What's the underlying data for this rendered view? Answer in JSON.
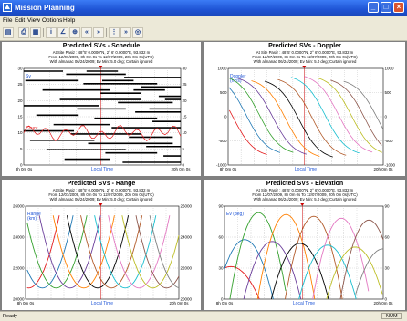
{
  "window": {
    "title": "Mission Planning"
  },
  "menu": [
    "File",
    "Edit",
    "View",
    "Options",
    "Help"
  ],
  "toolbar": {
    "icons": [
      "open-icon",
      "print-icon",
      "print-preview-icon",
      "info-icon",
      "line-chart-icon",
      "crosshair-icon",
      "step-back-icon",
      "step-forward-icon",
      "sky-plot-icon",
      "skip-icon",
      "settings-icon"
    ]
  },
  "common": {
    "subtitle1": "At Site Pasiz : 48°5' 0.0000\"N, 2° 6' 0.0000\"E, 93.832 m",
    "subtitle2": "From 12/07/2009, 8h 0m 0s To 12/07/2009, 20h 0m 0s(UTC)",
    "subtitle3": "With almanac 06/24/2009; Ev Min: 5.0 deg; Curtain ignored",
    "x_left": "8h 0m 0s",
    "x_right": "20h 0m 0s",
    "x_label": "Local Time"
  },
  "panels": {
    "schedule": {
      "title": "Predicted SVs - Schedule",
      "y_label": "Sv",
      "count_label": "Count",
      "ticks_left": [
        "30",
        "25",
        "20",
        "15",
        "10",
        "5",
        "0"
      ],
      "ticks_right": [
        "30",
        "25",
        "20",
        "15",
        "10",
        "5",
        "0"
      ]
    },
    "doppler": {
      "title": "Predicted SVs - Doppler",
      "y_label": "Doppler\n(hz/s)",
      "ticks_left": [
        "1000",
        "500",
        "0",
        "-500",
        "-1000"
      ],
      "ticks_right": [
        "1000",
        "500",
        "0",
        "-500",
        "-1000"
      ]
    },
    "range": {
      "title": "Predicted SVs - Range",
      "y_label": "Range\n(km)",
      "ticks_left": [
        "26000",
        "24000",
        "22000",
        "20000"
      ],
      "ticks_right": [
        "26000",
        "24000",
        "22000",
        "20000"
      ]
    },
    "elevation": {
      "title": "Predicted SVs - Elevation",
      "y_label": "Ev (deg)",
      "ticks_left": [
        "90",
        "60",
        "30",
        "0"
      ],
      "ticks_right": [
        "90",
        "60",
        "30",
        "0"
      ]
    }
  },
  "status": {
    "left": "Ready",
    "right": "NUM"
  },
  "colors": {
    "accent": "#1f55d6",
    "series": [
      "#e31a1c",
      "#1f78b4",
      "#33a02c",
      "#6a3d9a",
      "#ff7f00",
      "#000000",
      "#b15928",
      "#17becf",
      "#e377c2",
      "#bcbd22",
      "#8c564b",
      "#7f7f7f"
    ]
  }
}
